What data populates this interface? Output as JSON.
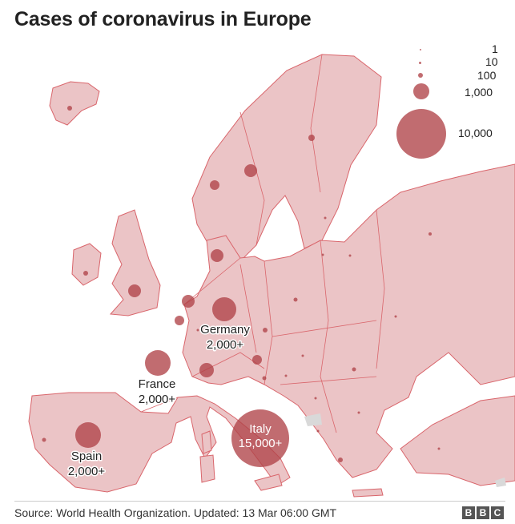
{
  "title": "Cases of coronavirus in Europe",
  "legend": {
    "entries": [
      {
        "label": "1",
        "value": 1
      },
      {
        "label": "10",
        "value": 10
      },
      {
        "label": "100",
        "value": 100
      },
      {
        "label": "1,000",
        "value": 1000
      },
      {
        "label": "10,000",
        "value": 10000
      }
    ]
  },
  "labelled_countries": [
    {
      "name": "Germany",
      "cases_label": "2,000+"
    },
    {
      "name": "France",
      "cases_label": "2,000+"
    },
    {
      "name": "Spain",
      "cases_label": "2,000+"
    },
    {
      "name": "Italy",
      "cases_label": "15,000+"
    }
  ],
  "footer": {
    "source": "Source: World Health Organization. Updated: 13 Mar 06:00 GMT",
    "logo_letters": [
      "B",
      "B",
      "C"
    ]
  },
  "colors": {
    "land": "#ebc4c6",
    "border": "#d9656b",
    "bubble": "#b04248",
    "sea": "#ffffff",
    "other_land": "#d9d9d9"
  }
}
